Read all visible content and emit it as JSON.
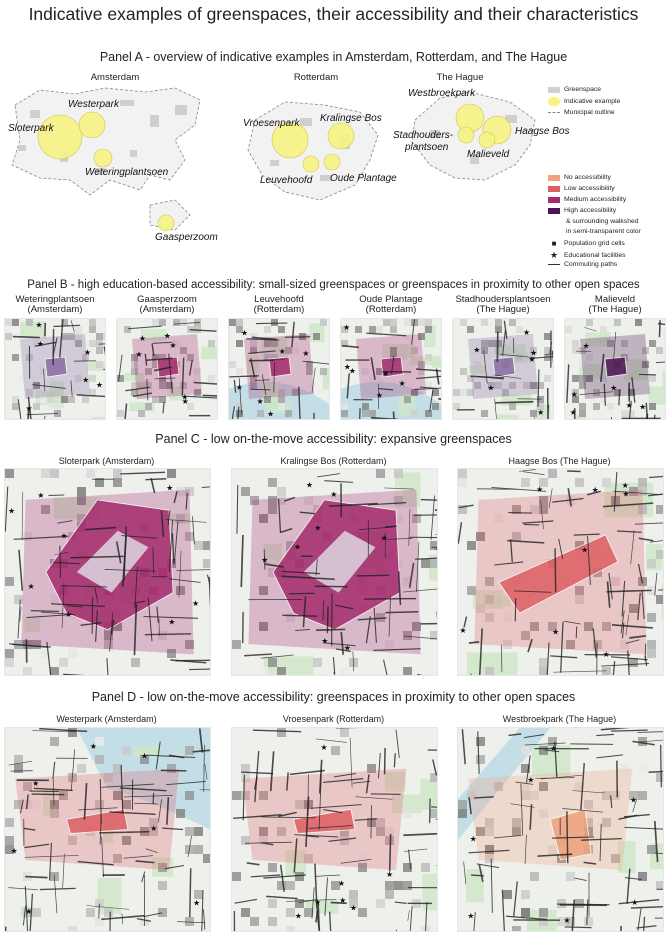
{
  "title": "Indicative examples of greenspaces, their accessibility and their characteristics",
  "panel_a": {
    "title": "Panel A - overview of indicative examples in Amsterdam, Rotterdam, and The Hague",
    "cities": [
      "Amsterdam",
      "Rotterdam",
      "The Hague"
    ],
    "amsterdam_parks": [
      "Westerpark",
      "Sloterpark",
      "Weteringplantsoen",
      "Gaasperzoom"
    ],
    "rotterdam_parks": [
      "Vroesenpark",
      "Kralingse Bos",
      "Leuvehoofd",
      "Oude Plantage"
    ],
    "hague_parks": [
      "Westbroekpark",
      "Stadhouders-",
      "plantsoen",
      "Haagse Bos",
      "Malieveld"
    ]
  },
  "legend": {
    "greenspace": "Greenspace",
    "indicative": "Indicative example",
    "outline": "Municipal outline",
    "no_access": "No accessibility",
    "low_access": "Low accessibility",
    "medium_access": "Medium accessibility",
    "high_access": "High accessibility",
    "walkshed_1": "& surrounding walkshed",
    "walkshed_2": "in semi-transparent color",
    "population": "Population grid cells",
    "education": "Educational facilities",
    "commuting": "Commuting paths",
    "colors": {
      "greenspace": "#d0d0d0",
      "indicative": "#f7f383",
      "no_access": "#efa27c",
      "low_access": "#dd5f63",
      "medium_access": "#a52b6e",
      "high_access": "#4b1550"
    }
  },
  "panel_b": {
    "title": "Panel B - high education-based accessibility: small-sized greenspaces or greenspaces in proximity to other open spaces",
    "maps": [
      {
        "name": "Weteringplantsoen",
        "city": "(Amsterdam)"
      },
      {
        "name": "Gaasperzoom",
        "city": "(Amsterdam)"
      },
      {
        "name": "Leuvehoofd",
        "city": "(Rotterdam)"
      },
      {
        "name": "Oude Plantage",
        "city": "(Rotterdam)"
      },
      {
        "name": "Stadhoudersplantsoen",
        "city": "(The Hague)"
      },
      {
        "name": "Malieveld",
        "city": "(The Hague)"
      }
    ]
  },
  "panel_c": {
    "title": "Panel C - low on-the-move accessibility: expansive greenspaces",
    "maps": [
      "Sloterpark (Amsterdam)",
      "Kralingse Bos (Rotterdam)",
      "Haagse Bos (The Hague)"
    ]
  },
  "panel_d": {
    "title": "Panel D - low on-the-move accessibility: greenspaces in proximity to other open spaces",
    "maps": [
      "Westerpark (Amsterdam)",
      "Vroesenpark (Rotterdam)",
      "Westbroekpark (The Hague)"
    ]
  }
}
